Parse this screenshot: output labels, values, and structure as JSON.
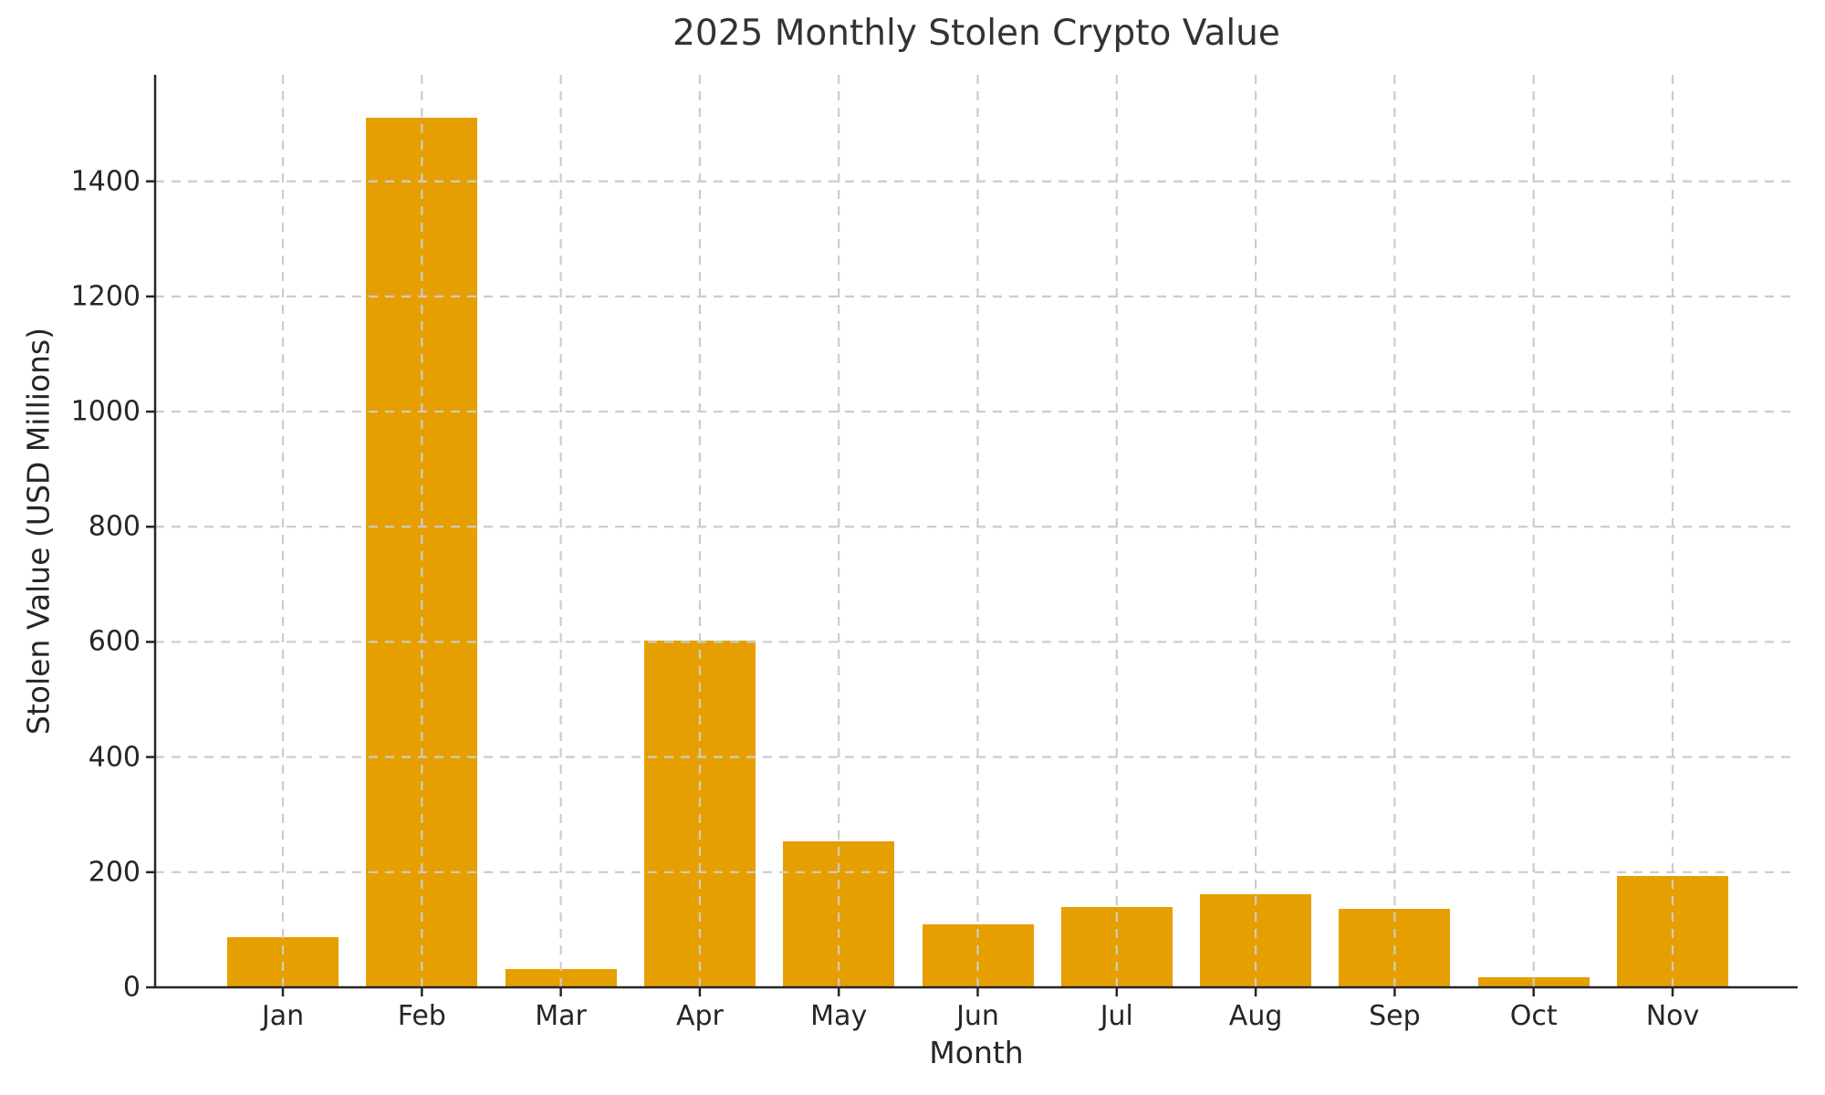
{
  "title": "2025 Monthly Stolen Crypto Value",
  "chart_data": {
    "type": "bar",
    "title": "2025 Monthly Stolen Crypto Value",
    "xlabel": "Month",
    "ylabel": "Stolen Value (USD Millions)",
    "categories": [
      "Jan",
      "Feb",
      "Mar",
      "Apr",
      "May",
      "Jun",
      "Jul",
      "Aug",
      "Sep",
      "Oct",
      "Nov"
    ],
    "values": [
      87,
      1510,
      32,
      602,
      254,
      110,
      140,
      162,
      137,
      18,
      193
    ],
    "ylim": [
      0,
      1585
    ],
    "yticks": [
      0,
      200,
      400,
      600,
      800,
      1000,
      1200,
      1400
    ],
    "bar_color": "#E69F00",
    "grid": "on",
    "grid_style": "dashed",
    "grid_color": "#cccccc",
    "axis_color": "#262626",
    "background_color": "#ffffff",
    "legend": "none"
  }
}
